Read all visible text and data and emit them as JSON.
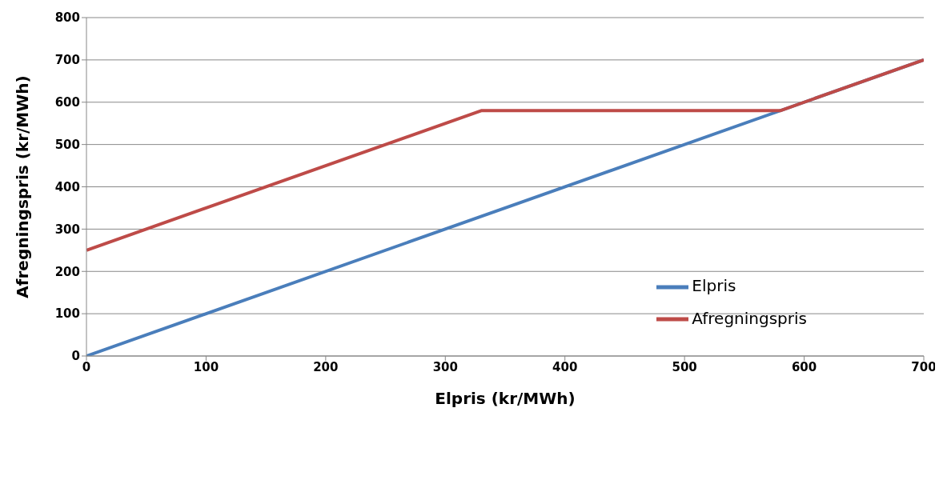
{
  "chart_data": {
    "type": "line",
    "xlabel": "Elpris (kr/MWh)",
    "ylabel": "Afregningspris (kr/MWh)",
    "series": [
      {
        "name": "Elpris",
        "color": "#4a7ebb",
        "x": [
          0,
          700
        ],
        "values": [
          0,
          700
        ]
      },
      {
        "name": "Afregningspris",
        "color": "#be4b48",
        "x": [
          0,
          330,
          580,
          700
        ],
        "values": [
          250,
          580,
          580,
          700
        ]
      }
    ],
    "xlim": [
      0,
      700
    ],
    "xticks": [
      0,
      100,
      200,
      300,
      400,
      500,
      600,
      700
    ],
    "ylim": [
      0,
      800
    ],
    "yticks": [
      0,
      100,
      200,
      300,
      400,
      500,
      600,
      700,
      800
    ],
    "grid": "y",
    "legend": "bottom right",
    "marker": "none",
    "line_style": "solid"
  }
}
